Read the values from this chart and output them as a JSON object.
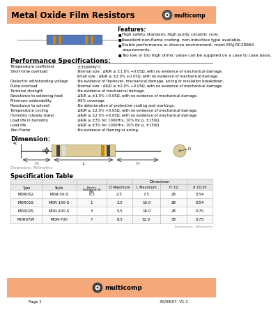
{
  "title": "Metal Oxide Film Resistors",
  "header_bg": "#F5A87A",
  "features_title": "Features:",
  "features": [
    "High safety standard, high purity ceramic core.",
    "Excellent non-flame coating, non-inductive type available.",
    "Stable performance in diverse environment, meet EIAJ-RC2886A\nrequirements.",
    "Too low or too high ohmic value can be supplied on a case to case basis."
  ],
  "perf_title": "Performance Specifications:",
  "perf_specs": [
    [
      "Temperature coefficient",
      ":±350PPM/°C"
    ],
    [
      "Short-time overload",
      ":Normal size : ΔR/R ≤ ±1.0% +0.05Ω, with no evidence of mechanical damage.\nSmall size : ΔR/R ≤ ±2.0% +0.05Ω, with no evidence of mechanical damage."
    ],
    [
      "Dielectric withstanding voltage",
      ":No evidence of flashover, mechanical damage, arcing or insulation breakdown."
    ],
    [
      "Pulse overload",
      ":Normal size : ΔR/R ≤ ±2.0% +0.05Ω, with no evidence of mechanical damage."
    ],
    [
      "Terminal strength",
      ":No evidence of mechanical damage."
    ],
    [
      "Resistance to soldering heat",
      ":ΔR/R ≤ ±1.0% +0.05Ω, with no evidence of mechanical damage."
    ],
    [
      "Minimum solderability",
      ":95% coverage."
    ],
    [
      "Resistance to solvent",
      ":No deterioration of protective coating and markings."
    ],
    [
      "Temperature cycling",
      ":ΔR/R ≤ ±2.0% +0.05Ω, with no evidence of mechanical damage."
    ],
    [
      "Humidity (steady state)",
      ":ΔR/R ≤ ±2.0% +0.05Ω, with no evidence of mechanical damage."
    ],
    [
      "Load life in humidity",
      ":ΔR/R ≤ ±3% for 1000Hrs, 10% for ρ, ±150Ω."
    ],
    [
      "Load life",
      ":ΔR/R ≤ ±3% for 1000Hrs, 10% for ρ, ±150Ω."
    ],
    [
      "Non-Flame",
      ":No evidence of flaming or arcing."
    ]
  ],
  "dim_title": "Dimension:",
  "table_title": "Specification Table",
  "table_col1_header": "Dimension",
  "table_data": [
    [
      "MOR0S2",
      "MOR-50-S",
      "0.5",
      "2.5",
      "7.5",
      "28",
      "0.54"
    ],
    [
      "MOR01S",
      "MOR-100-S",
      "1",
      "3.5",
      "10.0",
      "28",
      "0.54"
    ],
    [
      "MOR02S",
      "MOR-200-S",
      "3",
      "5.5",
      "16.0",
      "28",
      "0.70"
    ],
    [
      "MOR07W",
      "MOR-700",
      "7",
      "8.5",
      "32.0",
      "38",
      "0.75"
    ]
  ],
  "dim_note": "Dimensions : Millimetres",
  "footer_bg": "#F5A87A",
  "page_text": "Page 1",
  "date_text": "30/08/07  V1.1"
}
